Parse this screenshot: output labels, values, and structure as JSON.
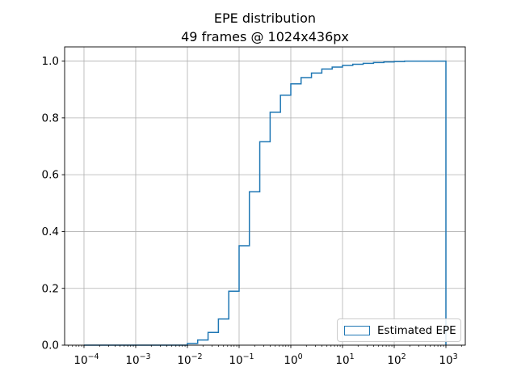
{
  "figure": {
    "title": "EPE distribution",
    "subtitle": "49 frames @ 1024x436px",
    "background": "#ffffff"
  },
  "legend": {
    "label": "Estimated EPE",
    "position": "lower right",
    "frame_color": "#cccccc",
    "patch_edge_color": "#1f77b4"
  },
  "chart_data": {
    "type": "step-cumulative-histogram",
    "title": "EPE distribution",
    "subtitle": "49 frames @ 1024x436px",
    "x_scale": "log",
    "xlim": [
      4.22e-05,
      2371
    ],
    "ylim": [
      0,
      1.05
    ],
    "grid": true,
    "grid_color": "#b0b0b0",
    "axis_color": "#000000",
    "series": [
      {
        "name": "Estimated EPE",
        "color": "#1f77b4",
        "bin_edges": [
          0.0001,
          0.000158,
          0.000251,
          0.000398,
          0.000631,
          0.001,
          0.00158,
          0.00251,
          0.00398,
          0.00631,
          0.01,
          0.0158,
          0.0251,
          0.0398,
          0.0631,
          0.1,
          0.158,
          0.251,
          0.398,
          0.631,
          1.0,
          1.58,
          2.51,
          3.98,
          6.31,
          10,
          15.8,
          25.1,
          39.8,
          63.1,
          100,
          158,
          251,
          398,
          631,
          1000
        ],
        "cumulative": [
          0,
          0,
          0,
          0,
          0,
          0,
          0,
          0,
          0,
          0,
          0.006,
          0.018,
          0.045,
          0.092,
          0.19,
          0.35,
          0.54,
          0.716,
          0.82,
          0.88,
          0.92,
          0.942,
          0.958,
          0.972,
          0.979,
          0.985,
          0.989,
          0.992,
          0.995,
          0.997,
          0.9985,
          1.0,
          1.0,
          1.0,
          1.0
        ]
      }
    ],
    "xticks": [
      {
        "value": 0.0001,
        "label": "10^−4"
      },
      {
        "value": 0.001,
        "label": "10^−3"
      },
      {
        "value": 0.01,
        "label": "10^−2"
      },
      {
        "value": 0.1,
        "label": "10^−1"
      },
      {
        "value": 1,
        "label": "10^0"
      },
      {
        "value": 10,
        "label": "10^1"
      },
      {
        "value": 100,
        "label": "10^2"
      },
      {
        "value": 1000,
        "label": "10^3"
      }
    ],
    "yticks": [
      {
        "value": 0.0,
        "label": "0.0"
      },
      {
        "value": 0.2,
        "label": "0.2"
      },
      {
        "value": 0.4,
        "label": "0.4"
      },
      {
        "value": 0.6,
        "label": "0.6"
      },
      {
        "value": 0.8,
        "label": "0.8"
      },
      {
        "value": 1.0,
        "label": "1.0"
      }
    ]
  }
}
